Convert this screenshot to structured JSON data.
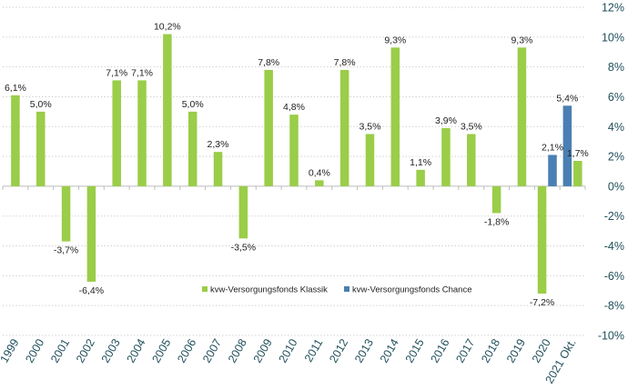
{
  "chart_data": {
    "type": "bar",
    "title": "",
    "xlabel": "",
    "ylabel": "",
    "ylim": [
      -10,
      12
    ],
    "yticks": [
      12,
      10,
      8,
      6,
      4,
      2,
      0,
      -2,
      -4,
      -6,
      -8,
      -10
    ],
    "ytick_labels": [
      "12%",
      "10%",
      "8%",
      "6%",
      "4%",
      "2%",
      "0%",
      "-2%",
      "-4%",
      "-6%",
      "-8%",
      "-10%"
    ],
    "categories": [
      "1999",
      "2000",
      "2001",
      "2002",
      "2003",
      "2004",
      "2005",
      "2006",
      "2007",
      "2008",
      "2009",
      "2010",
      "2011",
      "2012",
      "2013",
      "2014",
      "2015",
      "2016",
      "2017",
      "2018",
      "2019",
      "2020",
      "2021 Okt."
    ],
    "series": [
      {
        "name": "kvw-Versorgungsfonds Klassik",
        "color": "#9acd48",
        "values": [
          6.1,
          5.0,
          -3.7,
          -6.4,
          7.1,
          7.1,
          10.2,
          5.0,
          2.3,
          -3.5,
          7.8,
          4.8,
          0.4,
          7.8,
          3.5,
          9.3,
          1.1,
          3.9,
          3.5,
          -1.8,
          9.3,
          -7.2,
          1.7
        ],
        "labels": [
          "6,1%",
          "5,0%",
          "-3,7%",
          "-6,4%",
          "7,1%",
          "7,1%",
          "10,2%",
          "5,0%",
          "2,3%",
          "-3,5%",
          "7,8%",
          "4,8%",
          "0,4%",
          "7,8%",
          "3,5%",
          "9,3%",
          "1,1%",
          "3,9%",
          "3,5%",
          "-1,8%",
          "9,3%",
          "-7,2%",
          "1,7%"
        ]
      },
      {
        "name": "kvw-Versorgungsfonds Chance",
        "color": "#4a7fb3",
        "values": [
          null,
          null,
          null,
          null,
          null,
          null,
          null,
          null,
          null,
          null,
          null,
          null,
          null,
          null,
          null,
          null,
          null,
          null,
          null,
          null,
          null,
          2.1,
          5.4
        ],
        "labels": [
          null,
          null,
          null,
          null,
          null,
          null,
          null,
          null,
          null,
          null,
          null,
          null,
          null,
          null,
          null,
          null,
          null,
          null,
          null,
          null,
          null,
          "2,1%",
          "5,4%"
        ]
      }
    ],
    "grid": true,
    "y_axis_side": "right",
    "legend_position": "lower-center"
  }
}
